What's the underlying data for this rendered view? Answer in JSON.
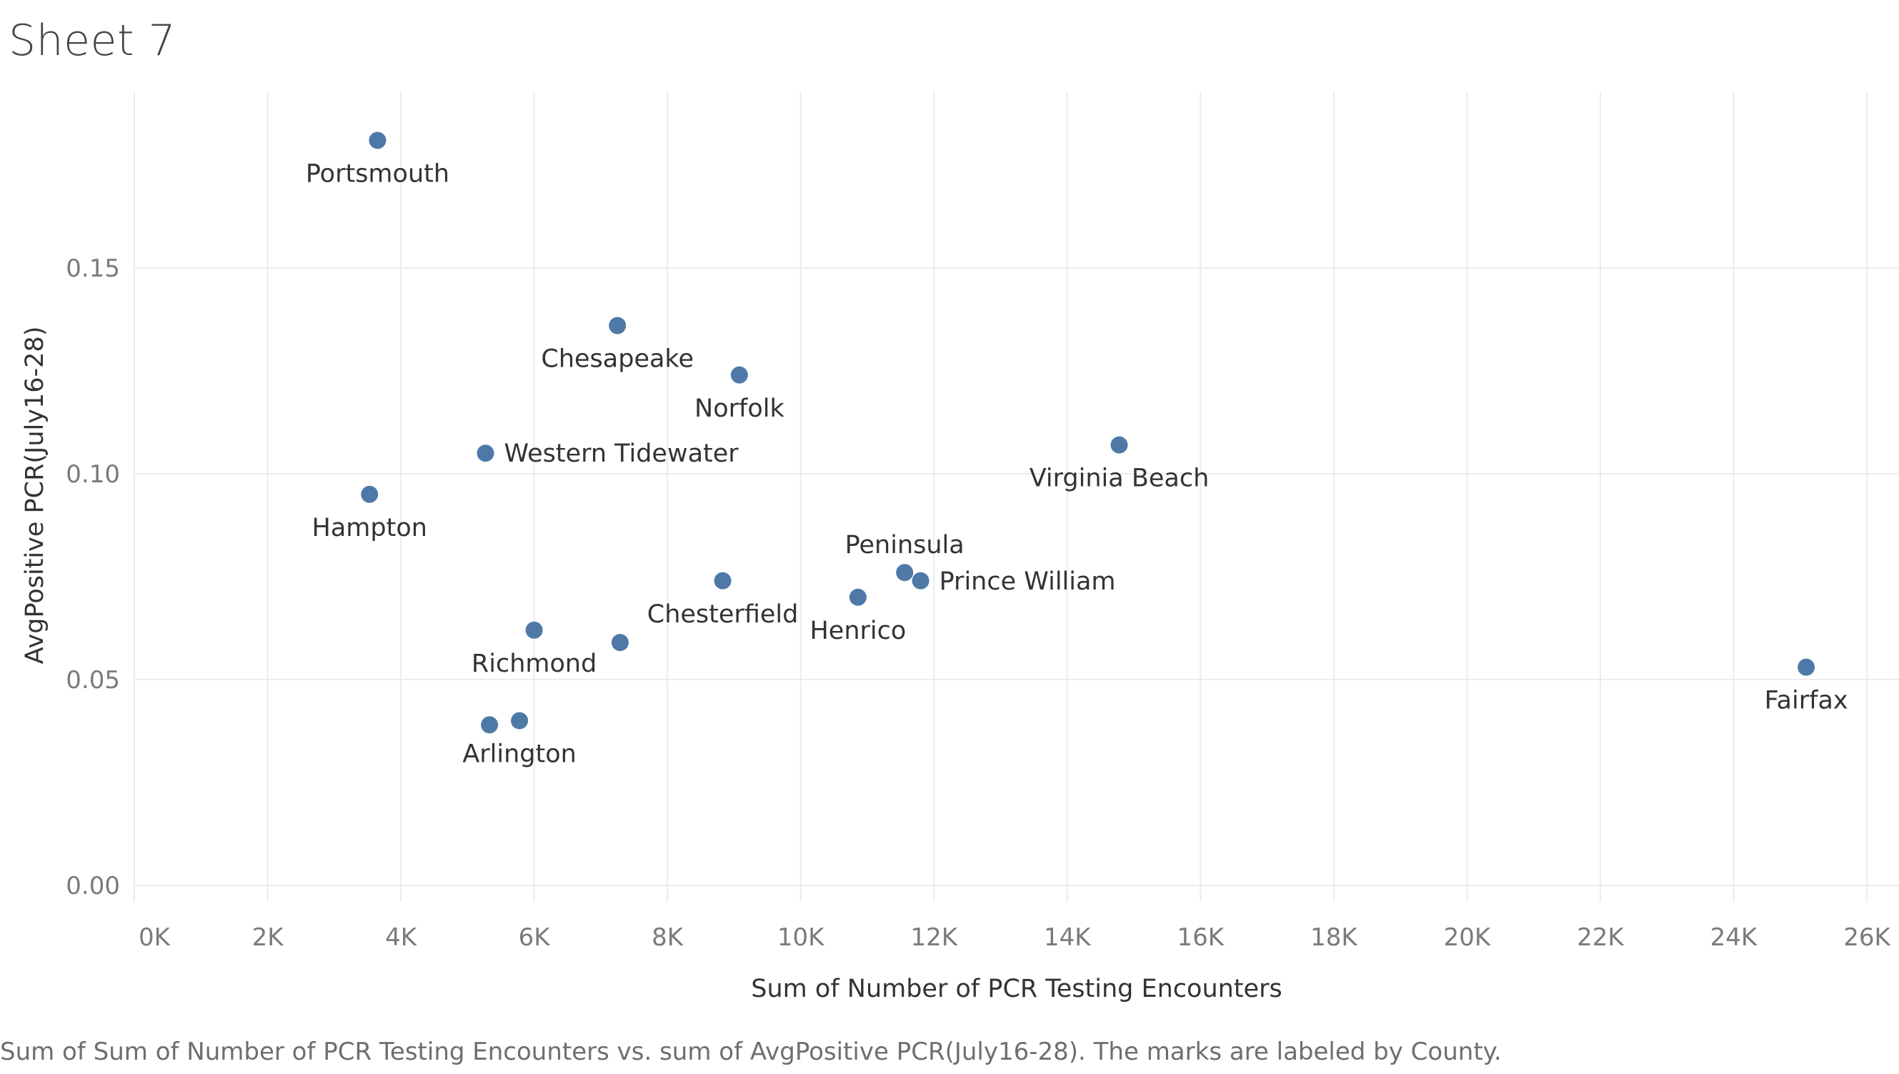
{
  "sheet": {
    "title": "Sheet 7",
    "caption": "Sum of Sum of Number of PCR Testing Encounters vs. sum of AvgPositive PCR(July16-28).  The marks are labeled by County."
  },
  "chart_data": {
    "type": "scatter",
    "title": "Sheet 7",
    "xlabel": "Sum of Number of PCR Testing Encounters",
    "ylabel": "AvgPositive PCR(July16-28)",
    "xlim": [
      0,
      26000
    ],
    "ylim": [
      0,
      0.18
    ],
    "x_ticks": [
      0,
      2000,
      4000,
      6000,
      8000,
      10000,
      12000,
      14000,
      16000,
      18000,
      20000,
      22000,
      24000,
      26000
    ],
    "x_tick_labels": [
      "0K",
      "2K",
      "4K",
      "6K",
      "8K",
      "10K",
      "12K",
      "14K",
      "16K",
      "18K",
      "20K",
      "22K",
      "24K",
      "26K"
    ],
    "y_ticks": [
      0,
      0.05,
      0.1,
      0.15
    ],
    "y_tick_labels": [
      "0.00",
      "0.05",
      "0.10",
      "0.15"
    ],
    "grid": true,
    "color": "#4e79a7",
    "points": [
      {
        "label": "Portsmouth",
        "x": 3650,
        "y": 0.181,
        "label_pos": "below"
      },
      {
        "label": "Chesapeake",
        "x": 7250,
        "y": 0.136,
        "label_pos": "below"
      },
      {
        "label": "Norfolk",
        "x": 9080,
        "y": 0.124,
        "label_pos": "below"
      },
      {
        "label": "Western Tidewater",
        "x": 5270,
        "y": 0.105,
        "label_pos": "right"
      },
      {
        "label": "Virginia Beach",
        "x": 14780,
        "y": 0.107,
        "label_pos": "below"
      },
      {
        "label": "Hampton",
        "x": 3530,
        "y": 0.095,
        "label_pos": "below"
      },
      {
        "label": "Peninsula",
        "x": 11560,
        "y": 0.076,
        "label_pos": "above"
      },
      {
        "label": "Prince William",
        "x": 11800,
        "y": 0.074,
        "label_pos": "right"
      },
      {
        "label": "Chesterfield",
        "x": 8830,
        "y": 0.074,
        "label_pos": "below"
      },
      {
        "label": "Henrico",
        "x": 10860,
        "y": 0.07,
        "label_pos": "below"
      },
      {
        "label": "Richmond",
        "x": 6000,
        "y": 0.062,
        "label_pos": "below"
      },
      {
        "label": "",
        "x": 7290,
        "y": 0.059,
        "label_pos": "none"
      },
      {
        "label": "Fairfax",
        "x": 25090,
        "y": 0.053,
        "label_pos": "below"
      },
      {
        "label": "",
        "x": 5330,
        "y": 0.039,
        "label_pos": "none"
      },
      {
        "label": "Arlington",
        "x": 5780,
        "y": 0.04,
        "label_pos": "below"
      }
    ]
  }
}
